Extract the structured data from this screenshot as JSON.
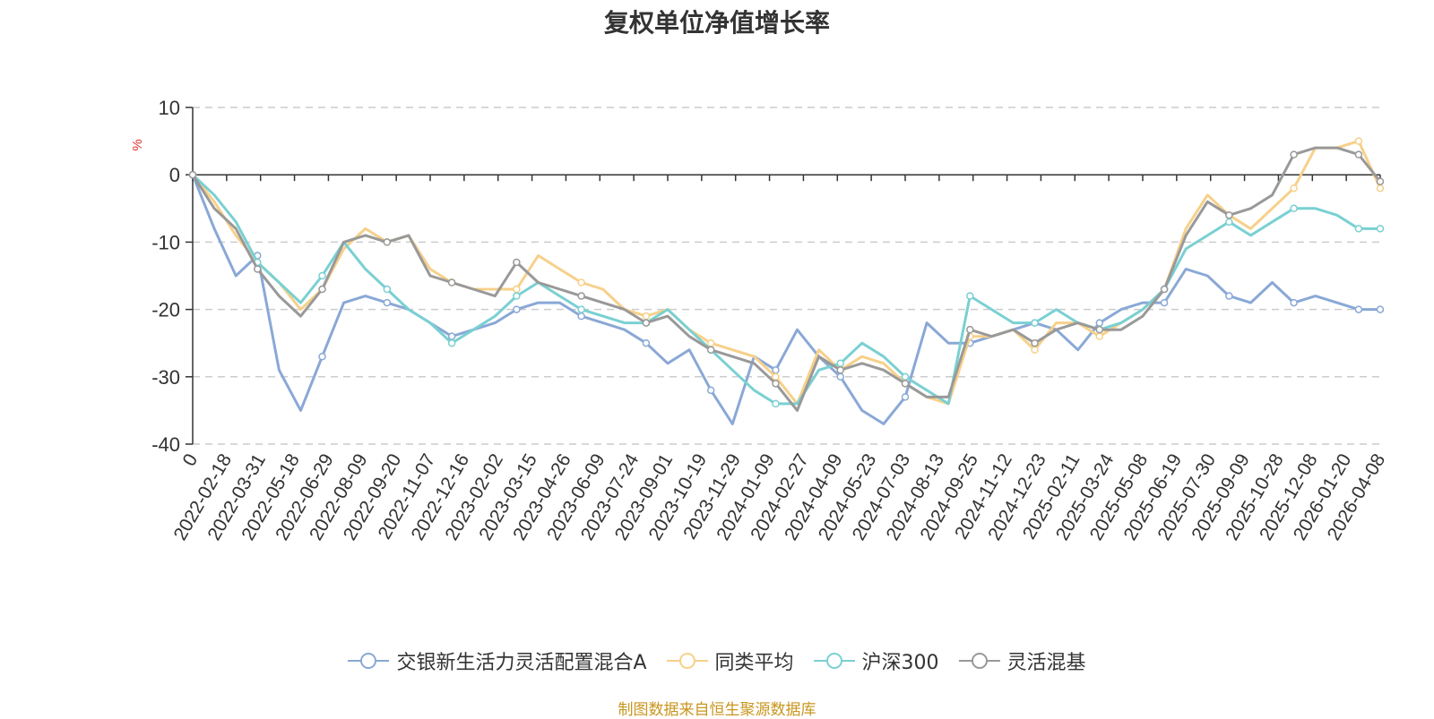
{
  "chart_data": {
    "type": "line",
    "title": "复权单位净值增长率",
    "ylabel": "%",
    "ylim": [
      -40,
      10
    ],
    "yticks": [
      10,
      0,
      -10,
      -20,
      -30,
      -40
    ],
    "grid": true,
    "legend_position": "bottom",
    "x_tick_labels": [
      "0",
      "2022-02-18",
      "2022-03-31",
      "2022-05-18",
      "2022-06-29",
      "2022-08-09",
      "2022-09-20",
      "2022-11-07",
      "2022-12-16",
      "2023-02-02",
      "2023-03-15",
      "2023-04-26",
      "2023-06-09",
      "2023-07-24",
      "2023-09-01",
      "2023-10-19",
      "2023-11-29",
      "2024-01-09",
      "2024-02-27",
      "2024-04-09",
      "2024-05-23",
      "2024-07-03",
      "2024-08-13",
      "2024-09-25",
      "2024-11-12",
      "2024-12-23",
      "2025-02-11",
      "2025-03-24",
      "2025-05-08",
      "2025-06-19",
      "2025-07-30",
      "2025-09-09",
      "2025-10-28",
      "2025-12-08",
      "2026-01-20",
      "2026-04-08"
    ],
    "series": [
      {
        "name": "交银新生活力灵活配置混合A",
        "color": "#8aa8d6",
        "values": [
          0,
          -8,
          -15,
          -12,
          -29,
          -35,
          -27,
          -19,
          -18,
          -19,
          -20,
          -22,
          -24,
          -23,
          -22,
          -20,
          -19,
          -19,
          -21,
          -22,
          -23,
          -25,
          -28,
          -26,
          -32,
          -37,
          -27,
          -29,
          -23,
          -27,
          -30,
          -35,
          -37,
          -33,
          -22,
          -25,
          -25,
          -24,
          -23,
          -22,
          -23,
          -26,
          -22,
          -20,
          -19,
          -19,
          -14,
          -15,
          -18,
          -19,
          -16,
          -19,
          -18,
          -19,
          -20,
          -20
        ]
      },
      {
        "name": "同类平均",
        "color": "#f7d08a",
        "values": [
          0,
          -4,
          -9,
          -13,
          -16,
          -20,
          -17,
          -11,
          -8,
          -10,
          -9,
          -14,
          -16,
          -17,
          -17,
          -17,
          -12,
          -14,
          -16,
          -17,
          -20,
          -21,
          -20,
          -23,
          -25,
          -26,
          -27,
          -30,
          -34,
          -26,
          -29,
          -27,
          -28,
          -31,
          -33,
          -34,
          -24,
          -24,
          -23,
          -26,
          -22,
          -22,
          -24,
          -22,
          -20,
          -17,
          -8,
          -3,
          -6,
          -8,
          -5,
          -2,
          4,
          4,
          5,
          -2
        ]
      },
      {
        "name": "沪深300",
        "color": "#7ad0d2",
        "values": [
          0,
          -3,
          -7,
          -13,
          -16,
          -19,
          -15,
          -10,
          -14,
          -17,
          -20,
          -22,
          -25,
          -23,
          -21,
          -18,
          -16,
          -18,
          -20,
          -21,
          -22,
          -22,
          -20,
          -23,
          -26,
          -29,
          -32,
          -34,
          -34,
          -29,
          -28,
          -25,
          -27,
          -30,
          -32,
          -34,
          -18,
          -20,
          -22,
          -22,
          -20,
          -22,
          -23,
          -22,
          -20,
          -17,
          -11,
          -9,
          -7,
          -9,
          -7,
          -5,
          -5,
          -6,
          -8,
          -8
        ]
      },
      {
        "name": "灵活混基",
        "color": "#999999",
        "values": [
          0,
          -5,
          -8,
          -14,
          -18,
          -21,
          -17,
          -10,
          -9,
          -10,
          -9,
          -15,
          -16,
          -17,
          -18,
          -13,
          -16,
          -17,
          -18,
          -19,
          -20,
          -22,
          -21,
          -24,
          -26,
          -27,
          -28,
          -31,
          -35,
          -27,
          -29,
          -28,
          -29,
          -31,
          -33,
          -33,
          -23,
          -24,
          -23,
          -25,
          -23,
          -22,
          -23,
          -23,
          -21,
          -17,
          -9,
          -4,
          -6,
          -5,
          -3,
          3,
          4,
          4,
          3,
          -1
        ]
      }
    ],
    "source_note": "制图数据来自恒生聚源数据库"
  }
}
